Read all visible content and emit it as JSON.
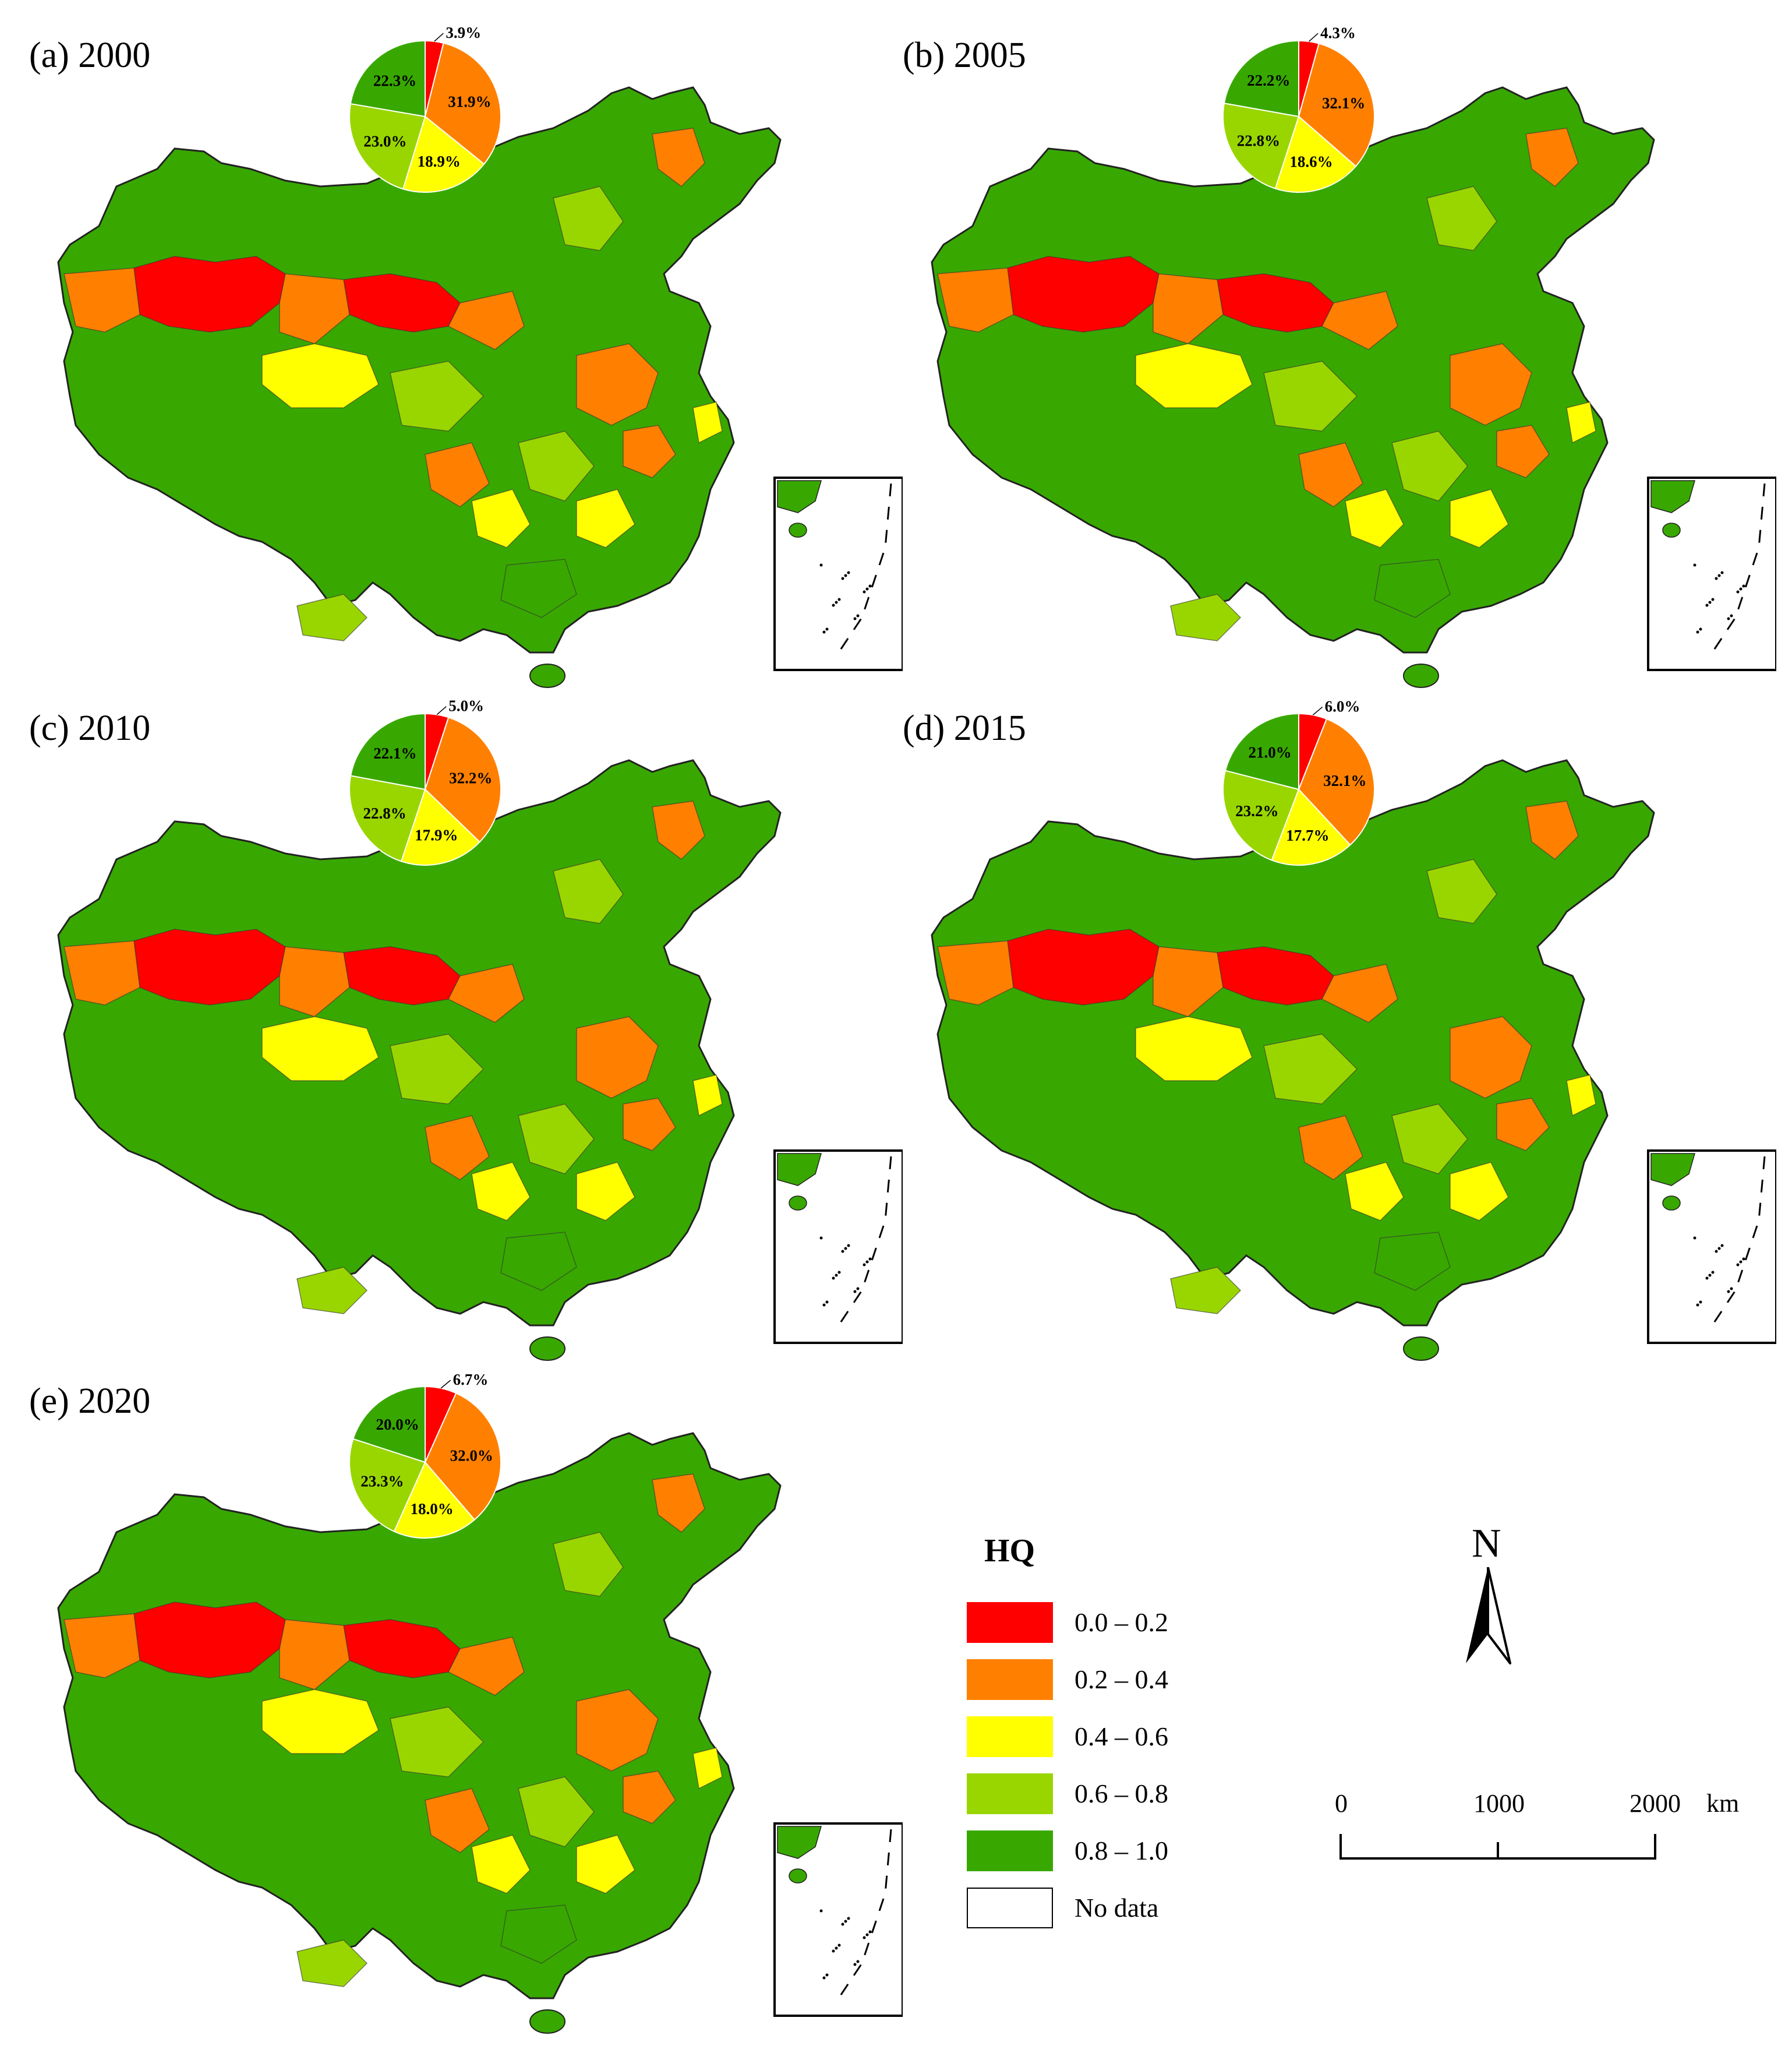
{
  "panels": [
    {
      "label": "(a) 2000",
      "pie": {
        "shares": [
          3.9,
          31.9,
          18.9,
          23.0,
          22.3
        ],
        "labels": [
          "3.9%",
          "31.9%",
          "18.9%",
          "23.0%",
          "22.3%"
        ]
      }
    },
    {
      "label": "(b) 2005",
      "pie": {
        "shares": [
          4.3,
          32.1,
          18.6,
          22.8,
          22.2
        ],
        "labels": [
          "4.3%",
          "32.1%",
          "18.6%",
          "22.8%",
          "22.2%"
        ]
      }
    },
    {
      "label": "(c) 2010",
      "pie": {
        "shares": [
          5.0,
          32.2,
          17.9,
          22.8,
          22.1
        ],
        "labels": [
          "5.0%",
          "32.2%",
          "17.9%",
          "22.8%",
          "22.1%"
        ]
      }
    },
    {
      "label": "(d) 2015",
      "pie": {
        "shares": [
          6.0,
          32.1,
          17.7,
          23.2,
          21.0
        ],
        "labels": [
          "6.0%",
          "32.1%",
          "17.7%",
          "23.2%",
          "21.0%"
        ]
      }
    },
    {
      "label": "(e) 2020",
      "pie": {
        "shares": [
          6.7,
          32.0,
          18.0,
          23.3,
          20.0
        ],
        "labels": [
          "6.7%",
          "32.0%",
          "18.0%",
          "23.3%",
          "20.0%"
        ]
      }
    }
  ],
  "legend": {
    "title": "HQ",
    "items": [
      {
        "label": "0.0 – 0.2",
        "color": "#ff0000"
      },
      {
        "label": "0.2 – 0.4",
        "color": "#ff8000"
      },
      {
        "label": "0.4 – 0.6",
        "color": "#ffff00"
      },
      {
        "label": "0.6 – 0.8",
        "color": "#99d600"
      },
      {
        "label": "0.8 – 1.0",
        "color": "#38a800"
      },
      {
        "label": "No data",
        "color": "#ffffff"
      }
    ]
  },
  "north_arrow": {
    "letter": "N"
  },
  "scale_bar": {
    "ticks": [
      "0",
      "1000",
      "2000"
    ],
    "unit": "km"
  }
}
